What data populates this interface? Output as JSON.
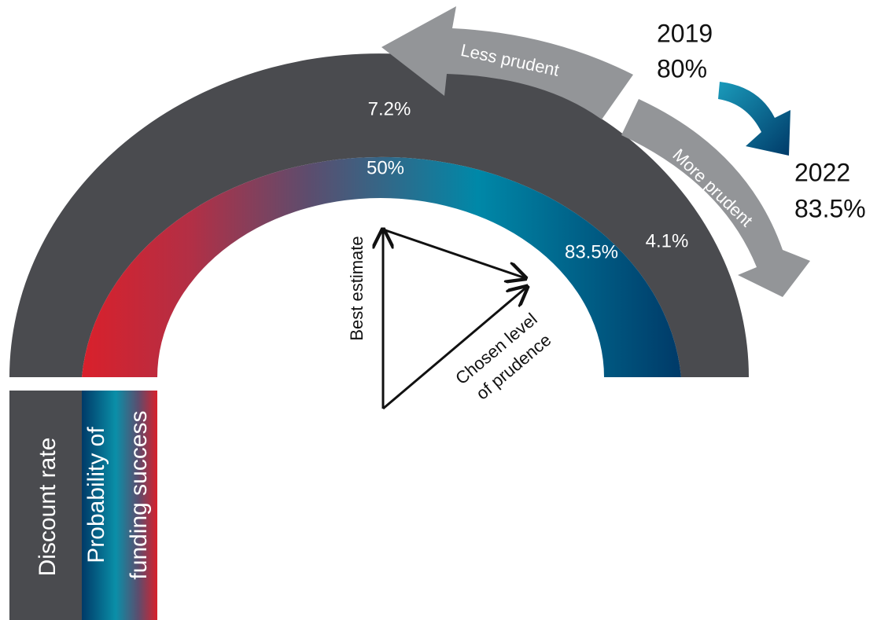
{
  "gauge": {
    "outer_label_left": "7.2%",
    "outer_label_right": "4.1%",
    "inner_label_top": "50%",
    "inner_label_right": "83.5%"
  },
  "arrows": {
    "less": "Less prudent",
    "more": "More prudent"
  },
  "change": {
    "from_year": "2019",
    "from_value": "80%",
    "to_year": "2022",
    "to_value": "83.5%"
  },
  "triangle": {
    "vertical": "Best estimate",
    "diagonal_line1": "Chosen level",
    "diagonal_line2": "of prudence"
  },
  "legend": {
    "discount": "Discount rate",
    "probability_line1": "Probability of",
    "probability_line2": "funding success"
  }
}
